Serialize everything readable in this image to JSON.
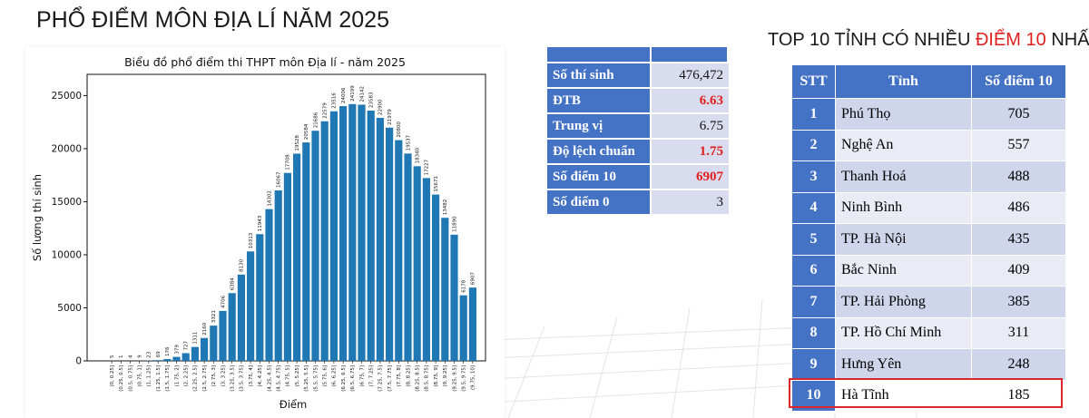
{
  "page_title": "PHỔ ĐIỂM MÔN ĐỊA LÍ NĂM 2025",
  "chart_data": {
    "type": "bar",
    "title": "Biểu đồ phổ điểm thi THPT môn Địa lí - năm 2025",
    "xlabel": "Điểm",
    "ylabel": "Số lượng thí sinh",
    "ylim": [
      0,
      27000
    ],
    "yticks": [
      0,
      5000,
      10000,
      15000,
      20000,
      25000
    ],
    "bar_color": "#1f77b4",
    "categories": [
      "(0, 0.25]",
      "(0.25, 0.5]",
      "(0.5, 0.75]",
      "(0.75, 1]",
      "(1, 1.25]",
      "(1.25, 1.5]",
      "(1.5, 1.75]",
      "(1.75, 2]",
      "(2, 2.25]",
      "(2.25, 2.5]",
      "(2.5, 2.75]",
      "(2.75, 3]",
      "(3, 3.25]",
      "(3.25, 3.5]",
      "(3.5, 3.75]",
      "(3.75, 4]",
      "(4, 4.25]",
      "(4.25, 4.5]",
      "(4.5, 4.75]",
      "(4.75, 5]",
      "(5, 5.25]",
      "(5.25, 5.5]",
      "(5.5, 5.75]",
      "(5.75, 6]",
      "(6, 6.25]",
      "(6.25, 6.5]",
      "(6.5, 6.75]",
      "(6.75, 7]",
      "(7, 7.25]",
      "(7.25, 7.5]",
      "(7.5, 7.75]",
      "(7.75, 8]",
      "(8, 8.25]",
      "(8.25, 8.5]",
      "(8.5, 8.75]",
      "(8.75, 9]",
      "(9, 9.25]",
      "(9.25, 9.5]",
      "(9.5, 9.75]",
      "(9.75, 10]"
    ],
    "values": [
      5,
      1,
      4,
      9,
      23,
      69,
      176,
      379,
      727,
      1311,
      2160,
      3321,
      4706,
      6384,
      8130,
      10313,
      11943,
      14302,
      16067,
      17708,
      19528,
      20584,
      21686,
      22579,
      23516,
      24006,
      24199,
      24142,
      23583,
      22900,
      21979,
      20800,
      19537,
      18340,
      17227,
      15671,
      13482,
      11890,
      6178,
      6907
    ]
  },
  "stats": {
    "rows": [
      {
        "label": "Số thí sinh",
        "value": "476,472",
        "color": "#111111"
      },
      {
        "label": "ĐTB",
        "value": "6.63",
        "color": "#e0201e"
      },
      {
        "label": "Trung vị",
        "value": "6.75",
        "color": "#111111"
      },
      {
        "label": "Độ lệch chuẩn",
        "value": "1.75",
        "color": "#e0201e"
      },
      {
        "label": "Số điểm 10",
        "value": "6907",
        "color": "#e0201e"
      },
      {
        "label": "Số điểm 0",
        "value": "3",
        "color": "#111111"
      }
    ]
  },
  "top10": {
    "title_before": "TOP 10 TỈNH CÓ NHIỀU ",
    "title_highlight": "ĐIỂM 10",
    "title_after": " NHẤT",
    "headers": [
      "STT",
      "Tỉnh",
      "Số điểm 10"
    ],
    "rows": [
      {
        "rank": "1",
        "province": "Phú Thọ",
        "count": "705"
      },
      {
        "rank": "2",
        "province": "Nghệ An",
        "count": "557"
      },
      {
        "rank": "3",
        "province": "Thanh Hoá",
        "count": "488"
      },
      {
        "rank": "4",
        "province": "Ninh Bình",
        "count": "486"
      },
      {
        "rank": "5",
        "province": "TP. Hà Nội",
        "count": "435"
      },
      {
        "rank": "6",
        "province": "Bắc Ninh",
        "count": "409"
      },
      {
        "rank": "7",
        "province": "TP. Hải Phòng",
        "count": "385"
      },
      {
        "rank": "8",
        "province": "TP. Hồ Chí Minh",
        "count": "311"
      },
      {
        "rank": "9",
        "province": "Hưng Yên",
        "count": "248"
      },
      {
        "rank": "10",
        "province": "Hà Tĩnh",
        "count": "185"
      }
    ]
  }
}
